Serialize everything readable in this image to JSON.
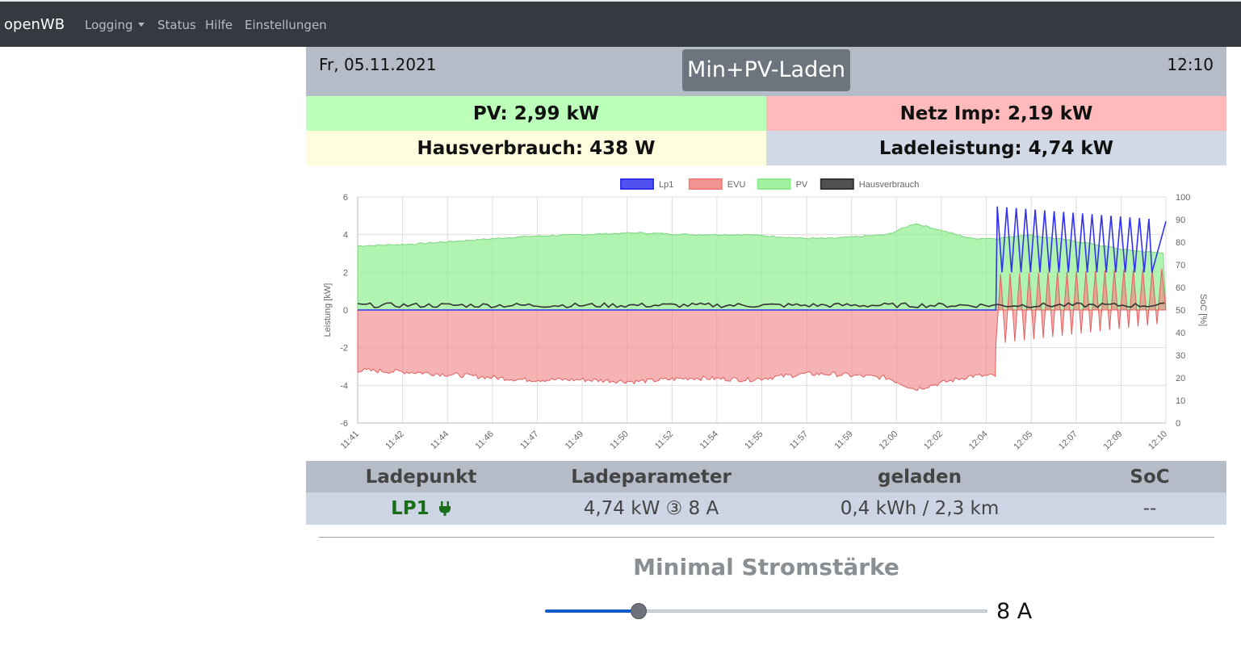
{
  "nav": {
    "brand": "openWB",
    "items": [
      {
        "label": "Logging",
        "dropdown": true
      },
      {
        "label": "Status"
      },
      {
        "label": "Hilfe"
      },
      {
        "label": "Einstellungen"
      }
    ]
  },
  "header": {
    "date": "Fr, 05.11.2021",
    "time": "12:10",
    "mode": "Min+PV-Laden"
  },
  "tiles": {
    "pv": "PV: 2,99 kW",
    "netz": "Netz Imp: 2,19 kW",
    "haus": "Hausverbrauch: 438 W",
    "lade": "Ladeleistung: 4,74 kW"
  },
  "colors": {
    "pv_tile": "#bbffbb",
    "netz_tile": "#ffbbbb",
    "haus_tile": "#fefedf",
    "lade_tile": "#d1d9e7",
    "lp1": "#3333ee",
    "evu": "#f08080",
    "pv": "#90ee90",
    "haus": "#333333"
  },
  "chart_data": {
    "type": "area",
    "legend": [
      "Lp1",
      "EVU",
      "PV",
      "Hausverbrauch"
    ],
    "legend_position": "top",
    "grid": true,
    "ylabel": "Leistung [kW]",
    "y2label": "SoC [%]",
    "ylim": [
      -6,
      6
    ],
    "y2lim": [
      0,
      100
    ],
    "yticks": [
      "6",
      "4",
      "2",
      "0",
      "-2",
      "-4",
      "-6"
    ],
    "y2ticks": [
      "100",
      "90",
      "80",
      "70",
      "60",
      "50",
      "40",
      "30",
      "20",
      "10",
      "0"
    ],
    "xticks": [
      "11:41",
      "11:42",
      "11:44",
      "11:46",
      "11:47",
      "11:49",
      "11:50",
      "11:52",
      "11:54",
      "11:55",
      "11:57",
      "11:59",
      "12:00",
      "12:02",
      "12:04",
      "12:05",
      "12:07",
      "12:09",
      "12:10"
    ],
    "series": [
      {
        "name": "PV",
        "x": [
          0,
          2,
          4,
          6,
          8,
          10,
          12,
          14,
          16,
          17,
          18,
          19,
          20,
          22,
          23,
          24,
          26,
          27.5,
          29
        ],
        "values": [
          3.4,
          3.5,
          3.7,
          3.9,
          4.0,
          4.1,
          4.0,
          4.0,
          3.8,
          3.8,
          3.9,
          4.0,
          4.6,
          3.8,
          3.8,
          4.0,
          3.6,
          3.2,
          3.0
        ]
      },
      {
        "name": "EVU",
        "x": [
          0,
          2,
          4,
          6,
          8,
          10,
          12,
          14,
          16,
          17,
          18,
          19,
          20,
          22,
          23
        ],
        "values": [
          -3.2,
          -3.3,
          -3.5,
          -3.7,
          -3.7,
          -3.8,
          -3.6,
          -3.7,
          -3.4,
          -3.4,
          -3.5,
          -3.6,
          -4.2,
          -3.5,
          -3.5
        ]
      },
      {
        "name": "Lp1",
        "x": [
          0,
          22.9,
          23.0,
          29
        ],
        "values": [
          0,
          0,
          5.5,
          4.7
        ]
      },
      {
        "name": "Hausverbrauch",
        "x": [
          0,
          29
        ],
        "values": [
          0.3,
          0.3
        ]
      }
    ]
  },
  "ladepunkt": {
    "headers": [
      "Ladepunkt",
      "Ladeparameter",
      "geladen",
      "SoC"
    ],
    "row": {
      "name": "LP1",
      "params": "4,74 kW ③ 8 A",
      "geladen": "0,4 kWh / 2,3 km",
      "soc": "--"
    }
  },
  "min_strom": {
    "title": "Minimal Stromstärke",
    "value_label": "8 A",
    "fraction": 0.21
  }
}
